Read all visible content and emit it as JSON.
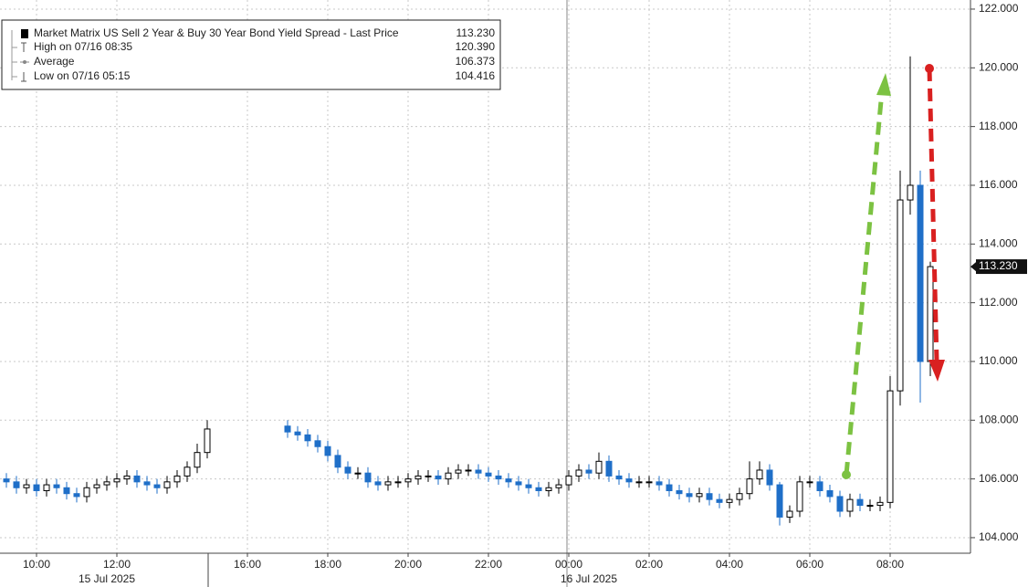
{
  "chart_data": {
    "type": "candlestick",
    "legend": [
      {
        "name": "Market Matrix US Sell 2 Year & Buy 30 Year Bond Yield Spread - Last Price",
        "value": 113.23,
        "value_label": "113.230"
      },
      {
        "name": "High on 07/16 08:35",
        "value": 120.39,
        "value_label": "120.390"
      },
      {
        "name": "Average",
        "value": 106.373,
        "value_label": "106.373"
      },
      {
        "name": "Low on 07/16 05:15",
        "value": 104.416,
        "value_label": "104.416"
      }
    ],
    "date_labels": [
      "15 Jul 2025",
      "16 Jul 2025"
    ],
    "categories": [
      null,
      null,
      null,
      "10:00",
      null,
      null,
      null,
      null,
      null,
      null,
      null,
      "12:00",
      null,
      null,
      null,
      null,
      null,
      null,
      null,
      null,
      null,
      null,
      null,
      null,
      "16:00",
      null,
      null,
      null,
      null,
      null,
      null,
      null,
      "18:00",
      null,
      null,
      null,
      null,
      null,
      null,
      null,
      "20:00",
      null,
      null,
      null,
      null,
      null,
      null,
      null,
      "22:00",
      null,
      null,
      null,
      null,
      null,
      null,
      null,
      "00:00",
      null,
      null,
      null,
      null,
      null,
      null,
      null,
      "02:00",
      null,
      null,
      null,
      null,
      null,
      null,
      null,
      "04:00",
      null,
      null,
      null,
      null,
      null,
      null,
      null,
      "06:00",
      null,
      null,
      null,
      null,
      null,
      null,
      null,
      "08:00",
      null,
      null,
      null,
      null
    ],
    "open": [
      106.0,
      105.9,
      105.7,
      105.8,
      105.6,
      105.8,
      105.7,
      105.5,
      105.4,
      105.7,
      105.8,
      105.9,
      106.0,
      106.1,
      105.9,
      105.8,
      105.7,
      105.9,
      106.1,
      106.4,
      106.9,
      null,
      null,
      null,
      null,
      null,
      null,
      null,
      107.8,
      107.6,
      107.5,
      107.3,
      107.1,
      106.8,
      106.4,
      106.2,
      106.2,
      105.9,
      105.8,
      105.9,
      105.9,
      106.0,
      106.1,
      106.1,
      106.0,
      106.2,
      106.3,
      106.3,
      106.2,
      106.1,
      106.0,
      105.9,
      105.8,
      105.7,
      105.6,
      105.7,
      105.8,
      106.1,
      106.3,
      106.2,
      106.6,
      106.1,
      106.0,
      105.9,
      105.9,
      105.9,
      105.8,
      105.6,
      105.5,
      105.4,
      105.5,
      105.3,
      105.2,
      105.3,
      105.5,
      106.0,
      106.3,
      105.8,
      104.7,
      104.9,
      105.9,
      105.9,
      105.6,
      105.4,
      104.9,
      105.3,
      105.1,
      105.1,
      105.2,
      109.0,
      115.5,
      116.0,
      110.0
    ],
    "high": [
      106.2,
      106.1,
      106.0,
      106.0,
      106.0,
      106.0,
      105.9,
      105.7,
      105.9,
      106.0,
      106.1,
      106.2,
      106.3,
      106.3,
      106.1,
      106.0,
      106.1,
      106.3,
      106.6,
      107.2,
      108.0,
      null,
      null,
      null,
      null,
      null,
      null,
      null,
      108.0,
      107.8,
      107.7,
      107.5,
      107.3,
      107.0,
      106.6,
      106.4,
      106.4,
      106.1,
      106.1,
      106.1,
      106.2,
      106.3,
      106.3,
      106.3,
      106.4,
      106.5,
      106.5,
      106.5,
      106.4,
      106.3,
      106.2,
      106.1,
      106.0,
      105.9,
      105.9,
      106.0,
      106.3,
      106.5,
      106.5,
      106.9,
      106.8,
      106.3,
      106.2,
      106.1,
      106.1,
      106.1,
      106.0,
      105.8,
      105.7,
      105.7,
      105.7,
      105.5,
      105.5,
      105.7,
      106.6,
      106.6,
      106.5,
      105.9,
      105.1,
      106.1,
      106.1,
      106.1,
      105.8,
      105.6,
      105.5,
      105.5,
      105.3,
      105.4,
      109.5,
      116.5,
      120.39,
      116.5,
      113.4
    ],
    "low": [
      105.7,
      105.5,
      105.5,
      105.4,
      105.4,
      105.5,
      105.3,
      105.2,
      105.2,
      105.5,
      105.6,
      105.7,
      105.8,
      105.7,
      105.6,
      105.5,
      105.5,
      105.7,
      105.9,
      106.2,
      106.7,
      null,
      null,
      null,
      null,
      null,
      null,
      null,
      107.4,
      107.3,
      107.1,
      106.9,
      106.6,
      106.2,
      106.0,
      106.0,
      105.7,
      105.6,
      105.6,
      105.7,
      105.7,
      105.8,
      105.9,
      105.8,
      105.8,
      106.0,
      106.1,
      106.0,
      105.9,
      105.8,
      105.7,
      105.6,
      105.5,
      105.4,
      105.4,
      105.5,
      105.6,
      105.9,
      106.0,
      106.0,
      105.9,
      105.8,
      105.7,
      105.7,
      105.7,
      105.6,
      105.4,
      105.3,
      105.2,
      105.2,
      105.1,
      105.0,
      105.0,
      105.1,
      105.3,
      105.8,
      105.6,
      104.416,
      104.5,
      104.7,
      105.7,
      105.4,
      105.2,
      104.7,
      104.7,
      104.9,
      104.9,
      104.9,
      105.0,
      108.5,
      115.0,
      108.6,
      109.5
    ],
    "close": [
      105.9,
      105.7,
      105.8,
      105.6,
      105.8,
      105.7,
      105.5,
      105.4,
      105.7,
      105.8,
      105.9,
      106.0,
      106.1,
      105.9,
      105.8,
      105.7,
      105.9,
      106.1,
      106.4,
      106.9,
      107.7,
      null,
      null,
      null,
      null,
      null,
      null,
      null,
      107.6,
      107.5,
      107.3,
      107.1,
      106.8,
      106.4,
      106.2,
      106.2,
      105.9,
      105.8,
      105.9,
      105.9,
      106.0,
      106.1,
      106.1,
      106.0,
      106.2,
      106.3,
      106.3,
      106.2,
      106.1,
      106.0,
      105.9,
      105.8,
      105.7,
      105.6,
      105.7,
      105.8,
      106.1,
      106.3,
      106.2,
      106.6,
      106.1,
      106.0,
      105.9,
      105.9,
      105.9,
      105.8,
      105.6,
      105.5,
      105.4,
      105.5,
      105.3,
      105.2,
      105.3,
      105.5,
      106.0,
      106.3,
      105.8,
      104.7,
      104.9,
      105.9,
      105.9,
      105.6,
      105.4,
      104.9,
      105.3,
      105.1,
      105.1,
      105.2,
      109.0,
      115.5,
      116.0,
      110.0,
      113.23
    ],
    "up_color": "#000000",
    "down_color": "#1f6fc8",
    "ylim": [
      103.47,
      122.31
    ],
    "yticks": [
      {
        "value": 104,
        "label": "104.000"
      },
      {
        "value": 106,
        "label": "106.000"
      },
      {
        "value": 108,
        "label": "108.000"
      },
      {
        "value": 110,
        "label": "110.000"
      },
      {
        "value": 112,
        "label": "112.000"
      },
      {
        "value": 114,
        "label": "114.000"
      },
      {
        "value": 116,
        "label": "116.000"
      },
      {
        "value": 118,
        "label": "118.000"
      },
      {
        "value": 120,
        "label": "120.000"
      },
      {
        "value": 122,
        "label": "122.000"
      }
    ],
    "grid": true
  }
}
